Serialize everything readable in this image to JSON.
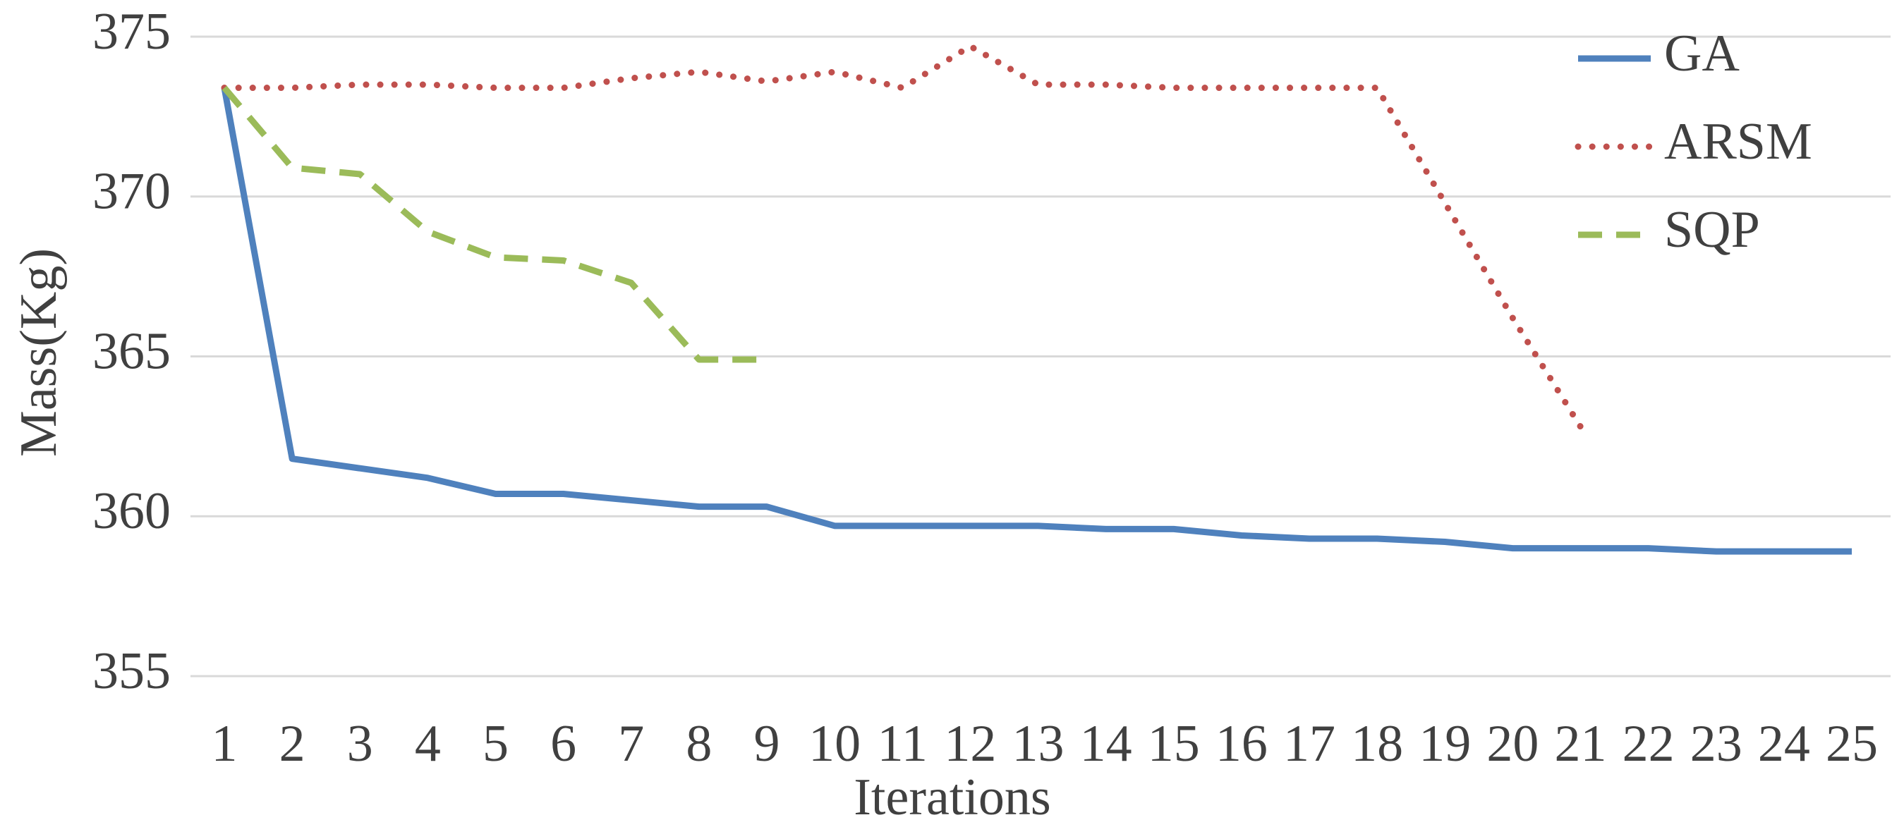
{
  "chart_data": {
    "type": "line",
    "x_label": "Iterations",
    "y_label": "Mass(Kg)",
    "x": [
      1,
      2,
      3,
      4,
      5,
      6,
      7,
      8,
      9,
      10,
      11,
      12,
      13,
      14,
      15,
      16,
      17,
      18,
      19,
      20,
      21,
      22,
      23,
      24,
      25
    ],
    "series": [
      {
        "name": "GA",
        "color": "#4f81bd",
        "dash": "solid",
        "values": [
          373.4,
          361.8,
          361.5,
          361.2,
          360.7,
          360.7,
          360.5,
          360.3,
          360.3,
          359.7,
          359.7,
          359.7,
          359.7,
          359.6,
          359.6,
          359.4,
          359.3,
          359.3,
          359.2,
          359.0,
          359.0,
          359.0,
          358.9,
          358.9,
          358.9
        ]
      },
      {
        "name": "ARSM",
        "color": "#c0504d",
        "dash": "dotted",
        "values": [
          373.4,
          373.4,
          373.5,
          373.5,
          373.4,
          373.4,
          373.7,
          373.9,
          373.6,
          373.9,
          373.4,
          374.7,
          373.5,
          373.5,
          373.4,
          373.4,
          373.4,
          373.4,
          369.8,
          366.2,
          362.8,
          null,
          null,
          null,
          null
        ]
      },
      {
        "name": "SQP",
        "color": "#9bbb59",
        "dash": "dashed",
        "values": [
          373.4,
          370.9,
          370.7,
          368.9,
          368.1,
          368.0,
          367.3,
          364.9,
          364.9,
          null,
          null,
          null,
          null,
          null,
          null,
          null,
          null,
          null,
          null,
          null,
          null,
          null,
          null,
          null,
          null
        ]
      }
    ],
    "ylim": [
      355,
      375
    ],
    "yticks": [
      355,
      360,
      365,
      370,
      375
    ],
    "grid": true,
    "legend": "top-right"
  }
}
